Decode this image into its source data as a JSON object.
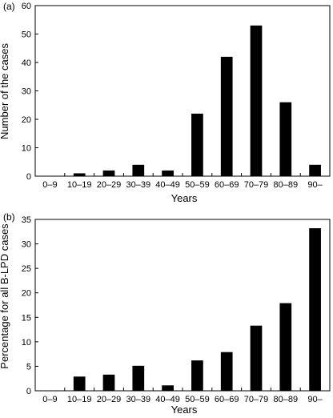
{
  "chart_data": [
    {
      "type": "bar",
      "panel_label": "(a)",
      "categories": [
        "0–9",
        "10–19",
        "20–29",
        "30–39",
        "40–49",
        "50–59",
        "60–69",
        "70–79",
        "80–89",
        "90–"
      ],
      "values": [
        0,
        1,
        2,
        4,
        2,
        22,
        42,
        53,
        26,
        4
      ],
      "xlabel": "Years",
      "ylabel": "Number of the cases",
      "ylim": [
        0,
        60
      ],
      "yticks": [
        0,
        10,
        20,
        30,
        40,
        50,
        60
      ],
      "grid": false,
      "bar_color": "#000000"
    },
    {
      "type": "bar",
      "panel_label": "(b)",
      "categories": [
        "0–9",
        "10–19",
        "20–29",
        "30–39",
        "40–49",
        "50–59",
        "60–69",
        "70–79",
        "80–89",
        "90–"
      ],
      "values": [
        0,
        2.9,
        3.3,
        5.1,
        1.1,
        6.2,
        7.9,
        13.3,
        17.9,
        33.2
      ],
      "xlabel": "Years",
      "ylabel": "Percentage for all B-LPD cases",
      "ylim": [
        0,
        35
      ],
      "yticks": [
        0,
        5,
        10,
        15,
        20,
        25,
        30,
        35
      ],
      "grid": false,
      "bar_color": "#000000"
    }
  ]
}
